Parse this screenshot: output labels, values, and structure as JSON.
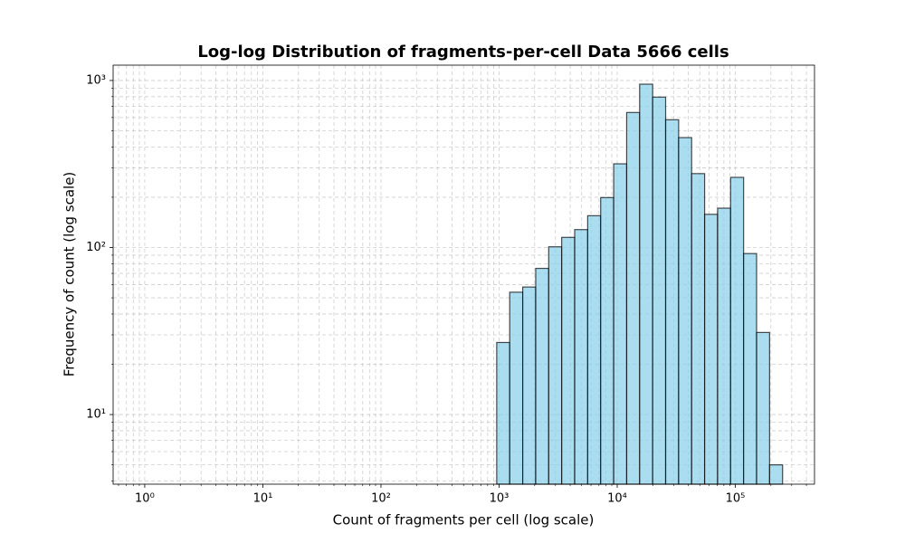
{
  "chart_data": {
    "type": "histogram",
    "title": "Log-log Distribution of fragments-per-cell Data 5666 cells",
    "xlabel": "Count of fragments per cell (log scale)",
    "ylabel": "Frequency of count (log scale)",
    "bins": [
      955,
      1230,
      1585,
      2042,
      2630,
      3388,
      4365,
      5623,
      7244,
      9333,
      12023,
      15488,
      19953,
      25704,
      33113,
      42658,
      54954,
      70795,
      91201,
      117490,
      151356,
      194984,
      251189
    ],
    "counts": [
      27,
      54,
      58,
      75,
      101,
      115,
      128,
      155,
      199,
      317,
      643,
      950,
      795,
      582,
      455,
      277,
      158,
      172,
      263,
      92,
      31,
      5
    ],
    "color": "#87ceeb",
    "edgecolor": "#000000",
    "xscale": "log",
    "yscale": "log",
    "grid": true,
    "xlim": [
      0.54,
      468000
    ],
    "ylim": [
      3.83,
      1235
    ],
    "xticks": [
      {
        "value": 1,
        "label": "10⁰"
      },
      {
        "value": 10,
        "label": "10¹"
      },
      {
        "value": 100,
        "label": "10²"
      },
      {
        "value": 1000,
        "label": "10³"
      },
      {
        "value": 10000,
        "label": "10⁴"
      },
      {
        "value": 100000,
        "label": "10⁵"
      }
    ],
    "yticks": [
      {
        "value": 10,
        "label": "10¹"
      },
      {
        "value": 100,
        "label": "10²"
      },
      {
        "value": 1000,
        "label": "10³"
      }
    ]
  }
}
